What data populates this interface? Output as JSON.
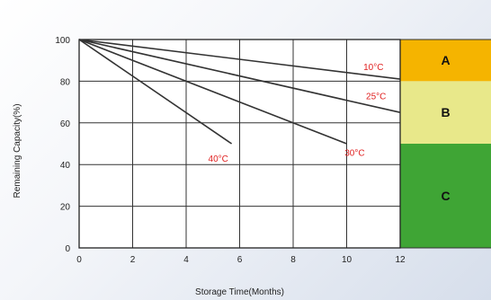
{
  "chart_data": {
    "type": "line",
    "xlabel": "Storage Time(Months)",
    "ylabel": "Remaining Capacity(%)",
    "xlim": [
      0,
      12
    ],
    "ylim": [
      0,
      100
    ],
    "x_ticks": [
      "0",
      "2",
      "4",
      "6",
      "8",
      "10",
      "12"
    ],
    "y_ticks": [
      "0",
      "20",
      "40",
      "60",
      "80",
      "100"
    ],
    "grid": true,
    "series": [
      {
        "name": "10°C",
        "x": [
          0,
          12
        ],
        "y": [
          100,
          81
        ],
        "label_at": [
          11,
          87
        ]
      },
      {
        "name": "25°C",
        "x": [
          0,
          12
        ],
        "y": [
          100,
          65
        ],
        "label_at": [
          11.1,
          73
        ]
      },
      {
        "name": "30°C",
        "x": [
          0,
          10
        ],
        "y": [
          100,
          50
        ],
        "label_at": [
          10.3,
          46
        ]
      },
      {
        "name": "40°C",
        "x": [
          0,
          5.7
        ],
        "y": [
          100,
          50
        ],
        "label_at": [
          5.2,
          43
        ]
      }
    ],
    "zones": [
      {
        "label": "A",
        "y_from": 100,
        "y_to": 80,
        "color": "#f5b400"
      },
      {
        "label": "B",
        "y_from": 80,
        "y_to": 50,
        "color": "#e8e88a"
      },
      {
        "label": "C",
        "y_from": 50,
        "y_to": 0,
        "color": "#3fa535"
      }
    ]
  }
}
